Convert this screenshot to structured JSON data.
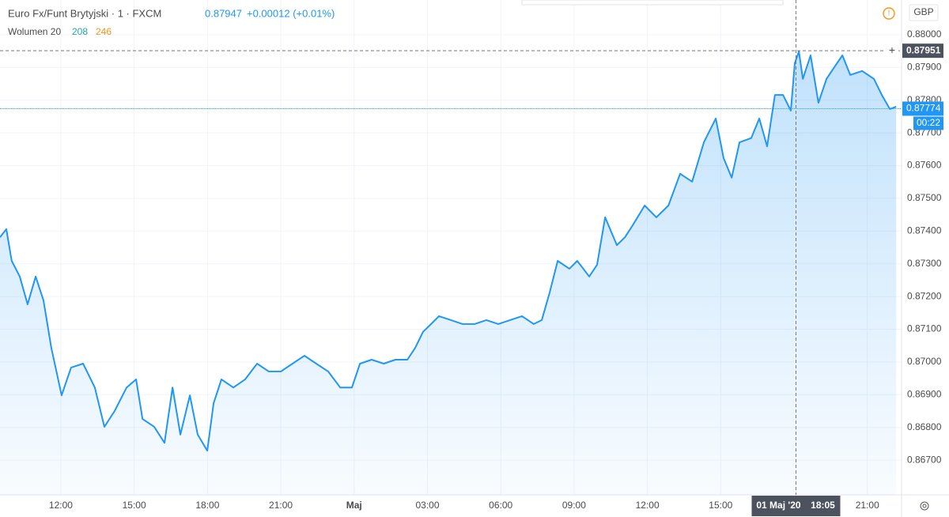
{
  "chart_data": {
    "type": "area",
    "header": {
      "symbol": "Euro Fx/Funt Brytyjski · 1 · FXCM",
      "price": "0.87947",
      "change": "+0.00012 (+0.01%)"
    },
    "volume_legend": {
      "label": "Wolumen 20",
      "up": "208",
      "down": "246"
    },
    "currency": "GBP",
    "color": "#2196f3",
    "x": [
      9.51,
      9.77,
      9.99,
      10.32,
      10.64,
      10.97,
      11.29,
      11.61,
      12.03,
      12.42,
      12.91,
      13.39,
      13.78,
      14.2,
      14.69,
      15.08,
      15.34,
      15.82,
      16.24,
      16.57,
      16.89,
      17.28,
      17.6,
      17.99,
      18.25,
      18.57,
      19.06,
      19.54,
      20.03,
      20.51,
      21.0,
      21.48,
      21.97,
      22.45,
      22.94,
      23.43,
      23.91,
      24.24,
      24.72,
      25.21,
      25.69,
      26.18,
      26.5,
      26.82,
      27.15,
      27.47,
      27.96,
      28.44,
      28.93,
      29.41,
      29.9,
      30.38,
      30.87,
      31.35,
      31.68,
      32.0,
      32.33,
      32.81,
      33.13,
      33.62,
      33.94,
      34.27,
      34.75,
      35.08,
      35.4,
      35.89,
      36.37,
      36.86,
      37.34,
      37.83,
      38.31,
      38.8,
      39.12,
      39.45,
      39.77,
      40.25,
      40.58,
      40.9,
      41.22,
      41.55,
      41.87,
      42.03,
      42.2,
      42.36,
      42.68,
      43.0,
      43.33,
      43.65,
      43.98,
      44.3,
      44.79,
      45.27,
      45.59,
      45.92,
      46.18
    ],
    "values": [
      0.87381,
      0.87406,
      0.87309,
      0.87261,
      0.87176,
      0.87261,
      0.87188,
      0.87043,
      0.86898,
      0.86983,
      0.86995,
      0.86922,
      0.86802,
      0.8685,
      0.86922,
      0.86947,
      0.86826,
      0.86802,
      0.86753,
      0.86922,
      0.86778,
      0.86898,
      0.86778,
      0.86729,
      0.86874,
      0.86947,
      0.86922,
      0.86947,
      0.86995,
      0.86971,
      0.86971,
      0.86995,
      0.87019,
      0.86995,
      0.86971,
      0.86922,
      0.86922,
      0.86995,
      0.87007,
      0.86995,
      0.87007,
      0.87007,
      0.87043,
      0.87092,
      0.87116,
      0.8714,
      0.87128,
      0.87116,
      0.87116,
      0.87128,
      0.87116,
      0.87128,
      0.8714,
      0.87116,
      0.87128,
      0.87212,
      0.87309,
      0.87285,
      0.87309,
      0.87261,
      0.87297,
      0.87442,
      0.87357,
      0.87381,
      0.87418,
      0.87478,
      0.87442,
      0.87478,
      0.87575,
      0.87551,
      0.87671,
      0.87744,
      0.87623,
      0.87563,
      0.87671,
      0.87684,
      0.87744,
      0.87659,
      0.87816,
      0.87816,
      0.87768,
      0.87913,
      0.87949,
      0.87865,
      0.87937,
      0.87792,
      0.87865,
      0.87901,
      0.87937,
      0.87877,
      0.87889,
      0.87865,
      0.87816,
      0.87773,
      0.8778
    ],
    "xlim": [
      9.51,
      46.4
    ],
    "ylim": [
      0.86594,
      0.88106
    ],
    "xticks": [
      {
        "value": 12,
        "label": "12:00"
      },
      {
        "value": 15,
        "label": "15:00"
      },
      {
        "value": 18,
        "label": "18:00"
      },
      {
        "value": 21,
        "label": "21:00"
      },
      {
        "value": 24,
        "label": "Maj"
      },
      {
        "value": 27,
        "label": "03:00"
      },
      {
        "value": 30,
        "label": "06:00"
      },
      {
        "value": 33,
        "label": "09:00"
      },
      {
        "value": 36,
        "label": "12:00"
      },
      {
        "value": 39,
        "label": "15:00"
      },
      {
        "value": 45,
        "label": "21:00"
      }
    ],
    "yticks": [
      {
        "value": 0.867,
        "label": "0.86700"
      },
      {
        "value": 0.868,
        "label": "0.86800"
      },
      {
        "value": 0.869,
        "label": "0.86900"
      },
      {
        "value": 0.87,
        "label": "0.87000"
      },
      {
        "value": 0.871,
        "label": "0.87100"
      },
      {
        "value": 0.872,
        "label": "0.87200"
      },
      {
        "value": 0.873,
        "label": "0.87300"
      },
      {
        "value": 0.874,
        "label": "0.87400"
      },
      {
        "value": 0.875,
        "label": "0.87500"
      },
      {
        "value": 0.876,
        "label": "0.87600"
      },
      {
        "value": 0.877,
        "label": "0.87700"
      },
      {
        "value": 0.878,
        "label": "0.87800"
      },
      {
        "value": 0.879,
        "label": "0.87900"
      },
      {
        "value": 0.88,
        "label": "0.88000"
      }
    ],
    "crosshair": {
      "x": 42.08,
      "date_label": "01 Maj '20",
      "time_label": "18:05",
      "y": 0.87951
    },
    "last_price": 0.87774,
    "countdown": "00:22"
  }
}
